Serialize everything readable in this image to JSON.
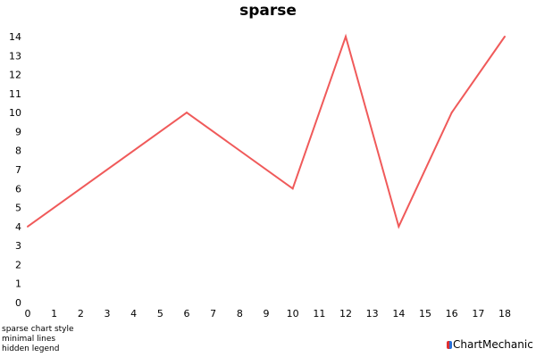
{
  "chart_data": {
    "type": "line",
    "title": "sparse",
    "xlabel": "",
    "ylabel": "",
    "x": [
      0,
      6,
      10,
      12,
      14,
      16,
      18
    ],
    "series": [
      {
        "values": [
          4,
          10,
          6,
          14,
          4,
          10,
          14
        ],
        "color": "#f05a5a"
      }
    ],
    "xlim": [
      0,
      18
    ],
    "ylim": [
      0,
      14
    ],
    "x_ticks": [
      0,
      1,
      2,
      3,
      4,
      5,
      6,
      7,
      8,
      9,
      10,
      11,
      12,
      13,
      14,
      15,
      16,
      17,
      18
    ],
    "y_ticks": [
      0,
      1,
      2,
      3,
      4,
      5,
      6,
      7,
      8,
      9,
      10,
      11,
      12,
      13,
      14
    ],
    "grid": false,
    "legend": "hidden"
  },
  "notes": [
    "sparse chart style",
    "minimal lines",
    "hidden legend"
  ],
  "brand": {
    "text": "ChartMechanic",
    "icon": "chartmechanic-logo-icon"
  }
}
